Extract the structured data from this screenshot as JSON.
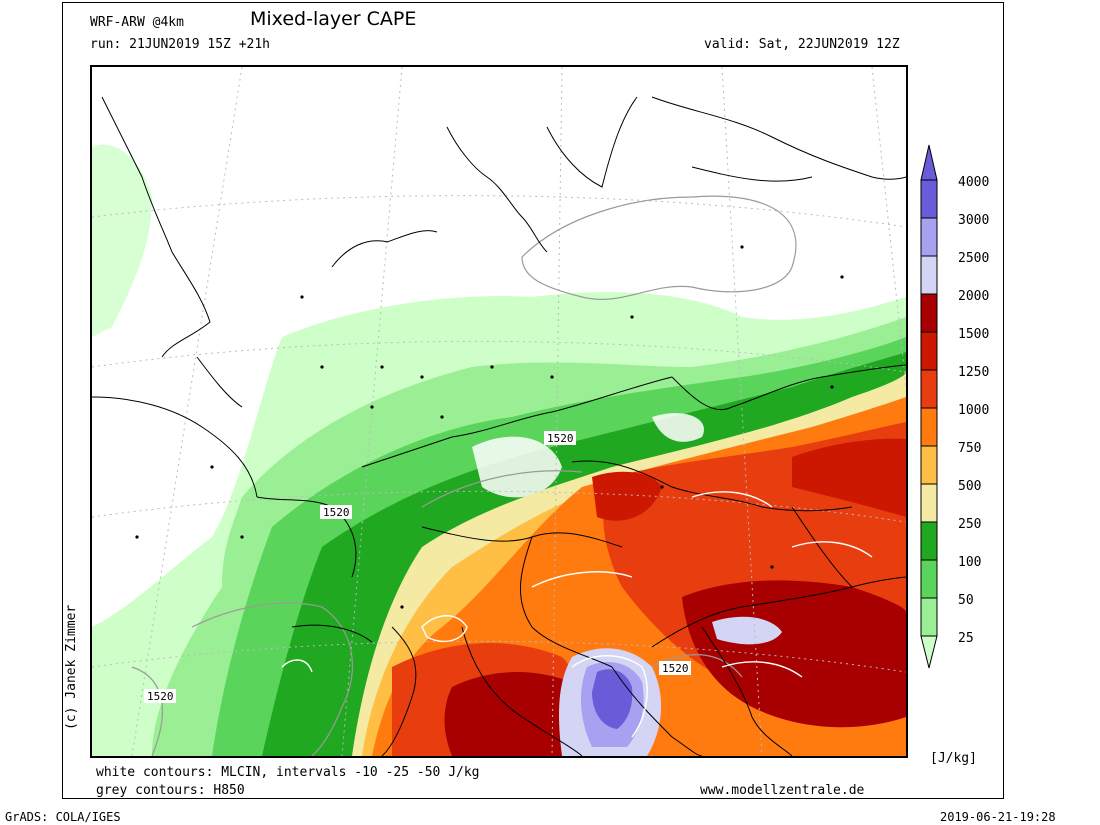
{
  "header": {
    "model": "WRF-ARW @4km",
    "title": "Mixed-layer CAPE",
    "run": "run: 21JUN2019 15Z +21h",
    "valid": "valid: Sat, 22JUN2019 12Z"
  },
  "credit": "(c) Janek Zimmer",
  "map": {
    "contour_labels": [
      "1520",
      "1520",
      "1520",
      "1520"
    ],
    "colors": {
      "c25": "#ceffc8",
      "c50": "#9aee94",
      "c100": "#5ad45a",
      "c250": "#21a821",
      "c500": "#f4eaa4",
      "c750": "#ffbf44",
      "c1000": "#ff7a0f",
      "c1250": "#e83e0f",
      "c1500": "#cc1800",
      "c2000": "#a80000",
      "c2500": "#d4d4f4",
      "c3000": "#a8a0f0",
      "c4000": "#6a5cd8"
    }
  },
  "legend": {
    "levels": [
      "4000",
      "3000",
      "2500",
      "2000",
      "1500",
      "1250",
      "1000",
      "750",
      "500",
      "250",
      "100",
      "50",
      "25"
    ],
    "units": "[J/kg]"
  },
  "notes": {
    "white_contours": "white contours: MLCIN, intervals -10 -25 -50 J/kg",
    "grey_contours": "grey contours: H850",
    "website": "www.modellzentrale.de"
  },
  "footer": {
    "left": "GrADS: COLA/IGES",
    "right": "2019-06-21-19:28"
  }
}
